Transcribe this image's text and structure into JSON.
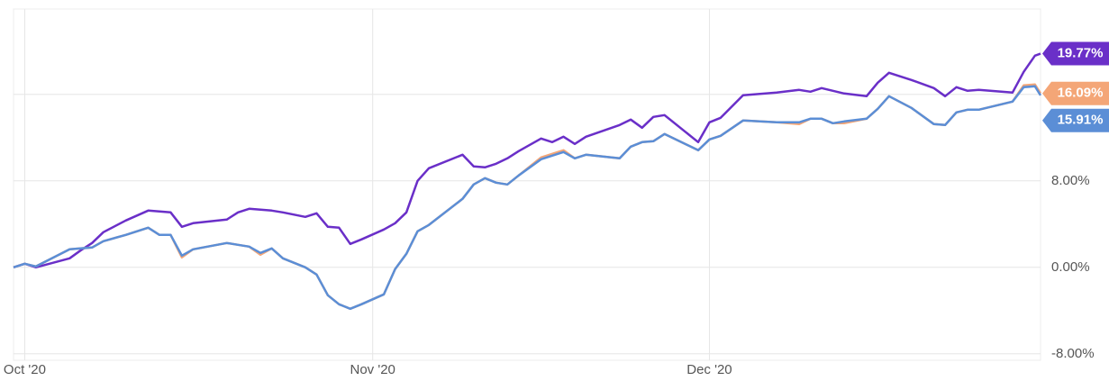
{
  "chart_data": {
    "type": "line",
    "x": [
      -1,
      0,
      1,
      4,
      5,
      6,
      7,
      9,
      11,
      12,
      13,
      14,
      15,
      18,
      19,
      20,
      21,
      22,
      23,
      25,
      26,
      27,
      28,
      29,
      30,
      32,
      33,
      34,
      35,
      36,
      39,
      40,
      41,
      42,
      43,
      44,
      46,
      47,
      48,
      49,
      50,
      53,
      54,
      55,
      56,
      57,
      60,
      61,
      62,
      64,
      67,
      69,
      70,
      71,
      72,
      73,
      75,
      76,
      77,
      79,
      81,
      82,
      83,
      84,
      85,
      88,
      89,
      90,
      90.5
    ],
    "series": [
      {
        "color": "#6a2fc8",
        "end_label": "19.77%",
        "values": [
          0,
          0.33,
          0,
          0.83,
          1.58,
          2.25,
          3.25,
          4.33,
          5.25,
          5.17,
          5.08,
          3.75,
          4.08,
          4.42,
          5.08,
          5.42,
          5.33,
          5.25,
          5.08,
          4.67,
          5.0,
          3.75,
          3.67,
          2.17,
          2.58,
          3.5,
          4.08,
          5.08,
          8.0,
          9.17,
          10.42,
          9.33,
          9.25,
          9.58,
          10.08,
          10.75,
          11.92,
          11.58,
          12.08,
          11.42,
          12.08,
          13.17,
          13.67,
          12.92,
          13.92,
          14.08,
          11.58,
          13.42,
          13.83,
          15.92,
          16.17,
          16.42,
          16.25,
          16.58,
          16.33,
          16.08,
          15.83,
          17.08,
          18.0,
          17.33,
          16.58,
          15.83,
          16.67,
          16.33,
          16.42,
          16.17,
          18.08,
          19.58,
          19.77
        ]
      },
      {
        "color": "#f4a677",
        "end_label": "16.09%",
        "values": [
          0,
          0.33,
          0.08,
          1.67,
          1.75,
          1.83,
          2.42,
          3.0,
          3.67,
          3.0,
          3.0,
          0.92,
          1.67,
          2.25,
          2.08,
          1.92,
          1.17,
          1.75,
          0.83,
          0,
          -0.67,
          -2.58,
          -3.42,
          -3.83,
          -3.42,
          -2.5,
          -0.17,
          1.25,
          3.33,
          3.92,
          6.33,
          7.67,
          8.25,
          7.83,
          7.67,
          8.5,
          10.17,
          10.5,
          10.83,
          10.08,
          10.42,
          10.08,
          11.17,
          11.58,
          11.67,
          12.33,
          10.83,
          11.83,
          12.17,
          13.58,
          13.42,
          13.25,
          13.75,
          13.75,
          13.33,
          13.33,
          13.75,
          14.67,
          15.83,
          14.75,
          13.25,
          13.17,
          14.33,
          14.58,
          14.58,
          15.33,
          16.83,
          16.92,
          16.09
        ]
      },
      {
        "color": "#5b8ed6",
        "end_label": "15.91%",
        "values": [
          0,
          0.33,
          0.08,
          1.67,
          1.75,
          1.83,
          2.42,
          3.0,
          3.67,
          3.0,
          3.0,
          1.08,
          1.67,
          2.25,
          2.08,
          1.92,
          1.33,
          1.75,
          0.83,
          0,
          -0.67,
          -2.58,
          -3.42,
          -3.83,
          -3.42,
          -2.5,
          -0.17,
          1.25,
          3.33,
          3.92,
          6.33,
          7.67,
          8.25,
          7.83,
          7.67,
          8.5,
          10.0,
          10.33,
          10.67,
          10.08,
          10.42,
          10.08,
          11.17,
          11.58,
          11.67,
          12.33,
          10.83,
          11.83,
          12.17,
          13.58,
          13.42,
          13.42,
          13.75,
          13.75,
          13.33,
          13.5,
          13.75,
          14.67,
          15.83,
          14.75,
          13.25,
          13.17,
          14.33,
          14.58,
          14.58,
          15.33,
          16.67,
          16.75,
          15.91
        ]
      }
    ],
    "xlim": [
      -1,
      90.5
    ],
    "xticks": [
      {
        "value": 0,
        "label": "Oct '20"
      },
      {
        "value": 31,
        "label": "Nov '20"
      },
      {
        "value": 61,
        "label": "Dec '20"
      }
    ],
    "ylim": [
      -8.6,
      23.9
    ],
    "yticks": [
      {
        "value": -8,
        "label": "-8.00%"
      },
      {
        "value": 0,
        "label": "0.00%"
      },
      {
        "value": 8,
        "label": "8.00%"
      },
      {
        "value": 16,
        "label": "16.00%"
      }
    ],
    "grid": true
  }
}
